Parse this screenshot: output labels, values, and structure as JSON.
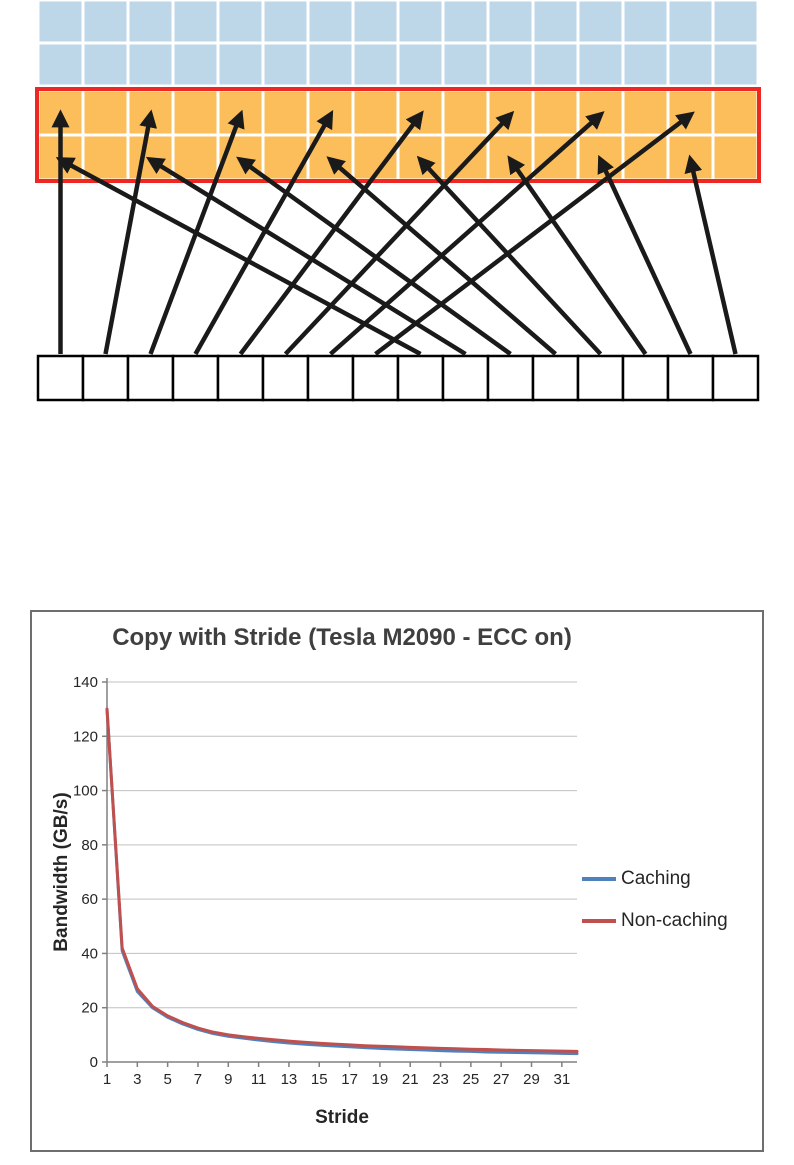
{
  "figure": {
    "name": "strided-memory-access-diagram",
    "grid": {
      "columns": 16,
      "cache_rows": 2,
      "target_rows": 2,
      "thread_boxes": 16,
      "stride": 2
    },
    "colors": {
      "cache_cell": "#BDD7E8",
      "target_cell": "#FBBE5B",
      "target_border": "#EE2724",
      "arrow": "#1A1A1A",
      "thread_box_border": "#000000",
      "thread_box_fill": "#FFFFFF"
    }
  },
  "chart_data": {
    "type": "line",
    "title": "Copy with Stride (Tesla M2090 - ECC on)",
    "xlabel": "Stride",
    "ylabel": "Bandwidth (GB/s)",
    "xlim": [
      1,
      32
    ],
    "ylim": [
      0,
      140
    ],
    "yticks": [
      0,
      20,
      40,
      60,
      80,
      100,
      120,
      140
    ],
    "xticks": [
      1,
      3,
      5,
      7,
      9,
      11,
      13,
      15,
      17,
      19,
      21,
      23,
      25,
      27,
      29,
      31
    ],
    "x": [
      1,
      2,
      3,
      4,
      5,
      6,
      7,
      8,
      9,
      10,
      11,
      12,
      13,
      14,
      15,
      16,
      17,
      18,
      19,
      20,
      21,
      22,
      23,
      24,
      25,
      26,
      27,
      28,
      29,
      30,
      31,
      32
    ],
    "series": [
      {
        "name": "Caching",
        "color": "#4F81BD",
        "values": [
          130,
          41,
          26,
          20,
          16.5,
          14,
          12,
          10.5,
          9.5,
          8.8,
          8.1,
          7.5,
          7.0,
          6.6,
          6.2,
          5.9,
          5.6,
          5.3,
          5.0,
          4.8,
          4.6,
          4.4,
          4.2,
          4.0,
          3.9,
          3.7,
          3.6,
          3.5,
          3.4,
          3.3,
          3.2,
          3.1
        ]
      },
      {
        "name": "Non-caching",
        "color": "#C0504D",
        "values": [
          130,
          42,
          27,
          20.5,
          17,
          14.5,
          12.5,
          11,
          10,
          9.3,
          8.7,
          8.2,
          7.7,
          7.3,
          6.9,
          6.6,
          6.3,
          6.0,
          5.8,
          5.6,
          5.4,
          5.2,
          5.0,
          4.9,
          4.7,
          4.6,
          4.4,
          4.3,
          4.2,
          4.1,
          4.0,
          3.9
        ]
      }
    ],
    "legend_position": "right",
    "grid": true,
    "gridline_color": "#C0C0C0",
    "axis_color": "#808080",
    "title_color": "#3F3F3F",
    "text_color": "#262626"
  }
}
